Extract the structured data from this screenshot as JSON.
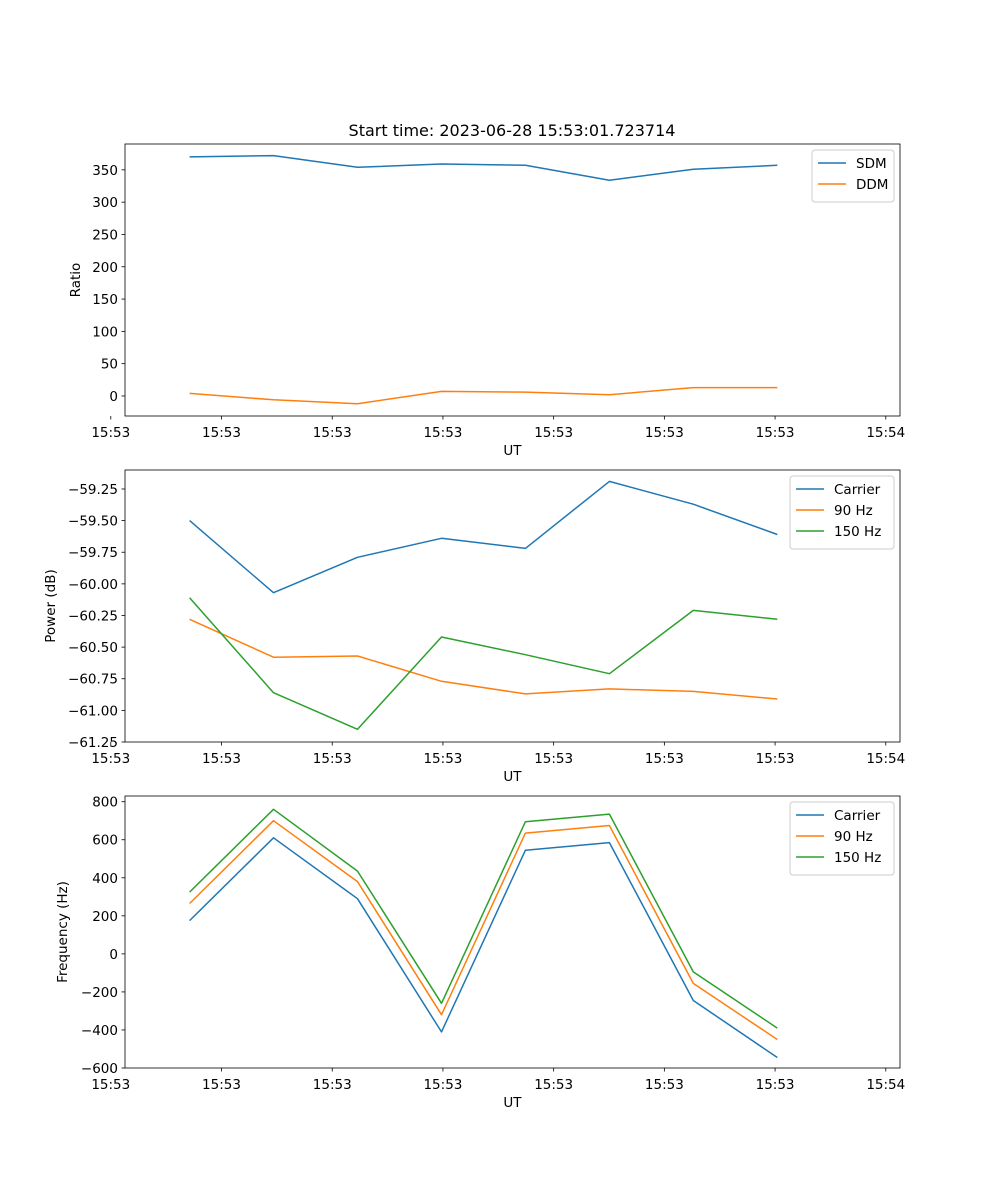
{
  "figure": {
    "title": "Start time: 2023-06-28 15:53:01.723714"
  },
  "chart_data": [
    {
      "type": "line",
      "title": "Start time: 2023-06-28 15:53:01.723714",
      "xlabel": "UT",
      "ylabel": "Ratio",
      "x_tick_labels": [
        "15:53",
        "15:53",
        "15:53",
        "15:53",
        "15:53",
        "15:53",
        "15:53",
        "15:54"
      ],
      "xlim": [
        0,
        6
      ],
      "ylim": [
        -31,
        390
      ],
      "y_ticks": [
        0,
        50,
        100,
        150,
        200,
        250,
        300,
        350
      ],
      "y_tick_labels": [
        "0",
        "50",
        "100",
        "150",
        "200",
        "250",
        "300",
        "350"
      ],
      "x": [
        0.5,
        1.15,
        1.8,
        2.45,
        3.1,
        3.75,
        4.4,
        5.05
      ],
      "legend_position": "top-right",
      "series": [
        {
          "name": "SDM",
          "color": "#1f77b4",
          "values": [
            370,
            372,
            354,
            359,
            357,
            334,
            351,
            357
          ]
        },
        {
          "name": "DDM",
          "color": "#ff7f0e",
          "values": [
            4,
            -6,
            -12,
            7,
            6,
            2,
            13,
            13
          ]
        }
      ]
    },
    {
      "type": "line",
      "xlabel": "UT",
      "ylabel": "Power (dB)",
      "x_tick_labels": [
        "15:53",
        "15:53",
        "15:53",
        "15:53",
        "15:53",
        "15:53",
        "15:53",
        "15:54"
      ],
      "xlim": [
        0,
        6
      ],
      "ylim": [
        -61.25,
        -59.1
      ],
      "y_ticks": [
        -61.25,
        -61.0,
        -60.75,
        -60.5,
        -60.25,
        -60.0,
        -59.75,
        -59.5,
        -59.25
      ],
      "y_tick_labels": [
        "−61.25",
        "−61.00",
        "−60.75",
        "−60.50",
        "−60.25",
        "−60.00",
        "−59.75",
        "−59.50",
        "−59.25"
      ],
      "x": [
        0.5,
        1.15,
        1.8,
        2.45,
        3.1,
        3.75,
        4.4,
        5.05
      ],
      "legend_position": "top-right",
      "series": [
        {
          "name": "Carrier",
          "color": "#1f77b4",
          "values": [
            -59.5,
            -60.07,
            -59.79,
            -59.64,
            -59.72,
            -59.19,
            -59.37,
            -59.61
          ]
        },
        {
          "name": "90 Hz",
          "color": "#ff7f0e",
          "values": [
            -60.28,
            -60.58,
            -60.57,
            -60.77,
            -60.87,
            -60.83,
            -60.85,
            -60.91
          ]
        },
        {
          "name": "150 Hz",
          "color": "#2ca02c",
          "values": [
            -60.11,
            -60.86,
            -61.15,
            -60.42,
            -60.56,
            -60.71,
            -60.21,
            -60.28
          ]
        }
      ]
    },
    {
      "type": "line",
      "xlabel": "UT",
      "ylabel": "Frequency (Hz)",
      "x_tick_labels": [
        "15:53",
        "15:53",
        "15:53",
        "15:53",
        "15:53",
        "15:53",
        "15:53",
        "15:54"
      ],
      "xlim": [
        0,
        6
      ],
      "ylim": [
        -600,
        830
      ],
      "y_ticks": [
        -600,
        -400,
        -200,
        0,
        200,
        400,
        600,
        800
      ],
      "y_tick_labels": [
        "−600",
        "−400",
        "−200",
        "0",
        "200",
        "400",
        "600",
        "800"
      ],
      "x": [
        0.5,
        1.15,
        1.8,
        2.45,
        3.1,
        3.75,
        4.4,
        5.05
      ],
      "legend_position": "top-right",
      "series": [
        {
          "name": "Carrier",
          "color": "#1f77b4",
          "values": [
            175,
            610,
            290,
            -410,
            545,
            585,
            -245,
            -545
          ]
        },
        {
          "name": "90 Hz",
          "color": "#ff7f0e",
          "values": [
            265,
            700,
            380,
            -320,
            635,
            675,
            -155,
            -450
          ]
        },
        {
          "name": "150 Hz",
          "color": "#2ca02c",
          "values": [
            325,
            760,
            435,
            -260,
            695,
            735,
            -95,
            -390
          ]
        }
      ]
    }
  ]
}
